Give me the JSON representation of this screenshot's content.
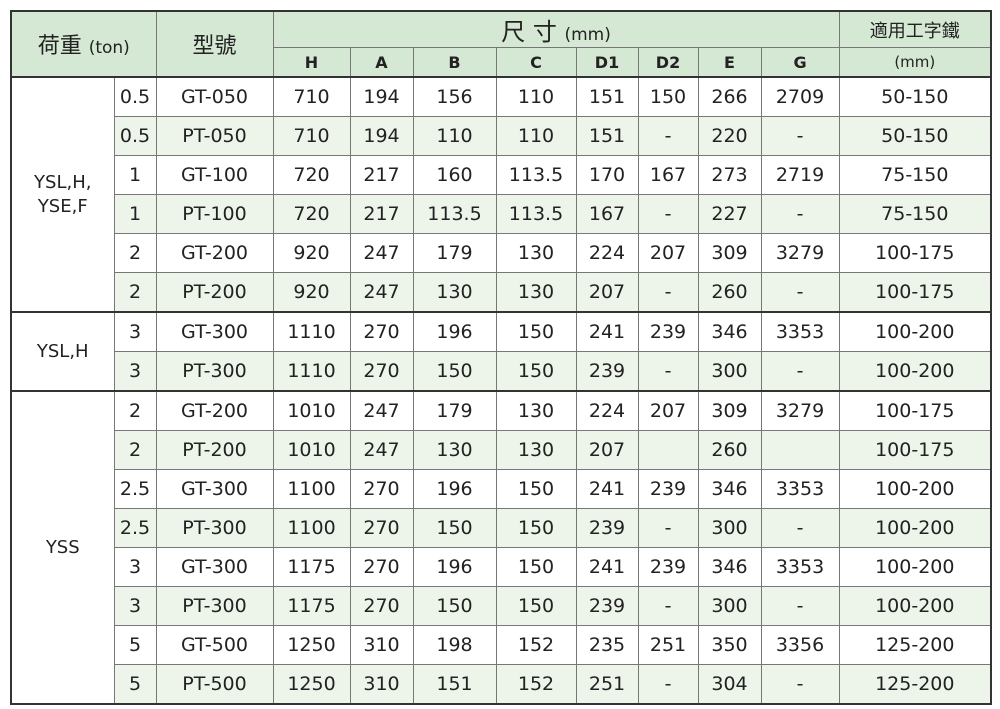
{
  "header": {
    "load": "荷重",
    "load_unit": "(ton)",
    "model": "型號",
    "dims": "尺 寸",
    "dims_unit": "(mm)",
    "beam": "適用工字鐵",
    "beam_unit": "(mm)",
    "columns": [
      "H",
      "A",
      "B",
      "C",
      "D1",
      "D2",
      "E",
      "G"
    ]
  },
  "groups": [
    {
      "name": "YSL,H,\nYSE,F",
      "rows": [
        [
          "0.5",
          "GT-050",
          "710",
          "194",
          "156",
          "110",
          "151",
          "150",
          "266",
          "2709",
          "50-150"
        ],
        [
          "0.5",
          "PT-050",
          "710",
          "194",
          "110",
          "110",
          "151",
          "-",
          "220",
          "-",
          "50-150"
        ],
        [
          "1",
          "GT-100",
          "720",
          "217",
          "160",
          "113.5",
          "170",
          "167",
          "273",
          "2719",
          "75-150"
        ],
        [
          "1",
          "PT-100",
          "720",
          "217",
          "113.5",
          "113.5",
          "167",
          "-",
          "227",
          "-",
          "75-150"
        ],
        [
          "2",
          "GT-200",
          "920",
          "247",
          "179",
          "130",
          "224",
          "207",
          "309",
          "3279",
          "100-175"
        ],
        [
          "2",
          "PT-200",
          "920",
          "247",
          "130",
          "130",
          "207",
          "-",
          "260",
          "-",
          "100-175"
        ]
      ]
    },
    {
      "name": "YSL,H",
      "rows": [
        [
          "3",
          "GT-300",
          "1110",
          "270",
          "196",
          "150",
          "241",
          "239",
          "346",
          "3353",
          "100-200"
        ],
        [
          "3",
          "PT-300",
          "1110",
          "270",
          "150",
          "150",
          "239",
          "-",
          "300",
          "-",
          "100-200"
        ]
      ]
    },
    {
      "name": "YSS",
      "rows": [
        [
          "2",
          "GT-200",
          "1010",
          "247",
          "179",
          "130",
          "224",
          "207",
          "309",
          "3279",
          "100-175"
        ],
        [
          "2",
          "PT-200",
          "1010",
          "247",
          "130",
          "130",
          "207",
          "",
          "260",
          "",
          "100-175"
        ],
        [
          "2.5",
          "GT-300",
          "1100",
          "270",
          "196",
          "150",
          "241",
          "239",
          "346",
          "3353",
          "100-200"
        ],
        [
          "2.5",
          "PT-300",
          "1100",
          "270",
          "150",
          "150",
          "239",
          "-",
          "300",
          "-",
          "100-200"
        ],
        [
          "3",
          "GT-300",
          "1175",
          "270",
          "196",
          "150",
          "241",
          "239",
          "346",
          "3353",
          "100-200"
        ],
        [
          "3",
          "PT-300",
          "1175",
          "270",
          "150",
          "150",
          "239",
          "-",
          "300",
          "-",
          "100-200"
        ],
        [
          "5",
          "GT-500",
          "1250",
          "310",
          "198",
          "152",
          "235",
          "251",
          "350",
          "3356",
          "125-200"
        ],
        [
          "5",
          "PT-500",
          "1250",
          "310",
          "151",
          "152",
          "251",
          "-",
          "304",
          "-",
          "125-200"
        ]
      ]
    }
  ],
  "colors": {
    "header_bg": "#d5e8d4",
    "alt_row_bg": "#edf5eb"
  }
}
